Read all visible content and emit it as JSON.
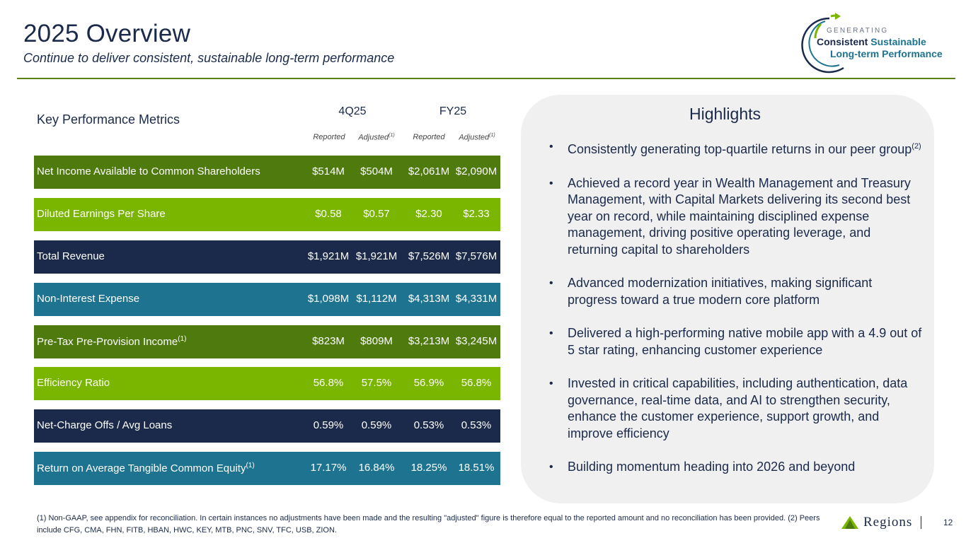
{
  "header": {
    "title": "2025 Overview",
    "subtitle": "Continue to deliver consistent, sustainable long-term performance"
  },
  "brand_mark": {
    "generating": "GENERATING",
    "consistent": "Consistent",
    "sustainable": "Sustainable",
    "long_term": "Long-term Performance"
  },
  "metrics": {
    "title": "Key Performance Metrics",
    "periods": [
      "4Q25",
      "FY25"
    ],
    "subheads": [
      "Reported",
      "Adjusted",
      "Reported",
      "Adjusted"
    ],
    "subhead_note": "(1)",
    "rows": [
      {
        "label": "Net Income Available to Common Shareholders",
        "note": "",
        "values": [
          "$514M",
          "$504M",
          "$2,061M",
          "$2,090M"
        ],
        "color": "#4f7a0e"
      },
      {
        "label": "Diluted Earnings Per Share",
        "note": "",
        "values": [
          "$0.58",
          "$0.57",
          "$2.30",
          "$2.33"
        ],
        "color": "#7ab600"
      },
      {
        "label": "Total Revenue",
        "note": "",
        "values": [
          "$1,921M",
          "$1,921M",
          "$7,526M",
          "$7,576M"
        ],
        "color": "#1b2a4a"
      },
      {
        "label": "Non-Interest Expense",
        "note": "",
        "values": [
          "$1,098M",
          "$1,112M",
          "$4,313M",
          "$4,331M"
        ],
        "color": "#1e7490"
      },
      {
        "label": "Pre-Tax Pre-Provision Income",
        "note": "(1)",
        "values": [
          "$823M",
          "$809M",
          "$3,213M",
          "$3,245M"
        ],
        "color": "#4f7a0e"
      },
      {
        "label": "Efficiency Ratio",
        "note": "",
        "values": [
          "56.8%",
          "57.5%",
          "56.9%",
          "56.8%"
        ],
        "color": "#7ab600"
      },
      {
        "label": "Net-Charge Offs / Avg Loans",
        "note": "",
        "values": [
          "0.59%",
          "0.59%",
          "0.53%",
          "0.53%"
        ],
        "color": "#1b2a4a"
      },
      {
        "label": "Return on Average Tangible Common Equity",
        "note": "(1)",
        "values": [
          "17.17%",
          "16.84%",
          "18.25%",
          "18.51%"
        ],
        "color": "#1e7490"
      }
    ]
  },
  "highlights": {
    "title": "Highlights",
    "bullets": [
      {
        "text": "Consistently generating top-quartile returns in our peer group",
        "note": "(2)"
      },
      {
        "text": "Achieved a record year in Wealth Management and Treasury Management, with Capital Markets delivering its second best year on record, while maintaining disciplined expense management, driving positive operating leverage, and returning capital to shareholders",
        "note": ""
      },
      {
        "text": "Advanced modernization initiatives, making significant progress toward a true modern core platform",
        "note": ""
      },
      {
        "text": "Delivered a high-performing native mobile app with a 4.9 out of 5 star rating, enhancing customer experience",
        "note": ""
      },
      {
        "text": "Invested in critical capabilities, including authentication, data governance, real-time data, and AI to strengthen security, enhance the customer experience, support growth, and improve efficiency",
        "note": ""
      },
      {
        "text": "Building momentum heading into 2026 and beyond",
        "note": ""
      }
    ]
  },
  "footer": {
    "footnote": "(1) Non-GAAP, see appendix for reconciliation. In certain instances no adjustments have been made and the resulting \"adjusted\" figure is therefore equal to the reported amount and no reconciliation has been provided. (2) Peers include CFG, CMA, FHN, FITB, HBAN, HWC, KEY, MTB, PNC, SNV, TFC, USB, ZION.",
    "company": "Regions",
    "page_number": "12"
  },
  "colors": {
    "navy": "#1b2a4a",
    "dark_green": "#4f7a0e",
    "light_green": "#7ab600",
    "teal": "#1e7490"
  }
}
